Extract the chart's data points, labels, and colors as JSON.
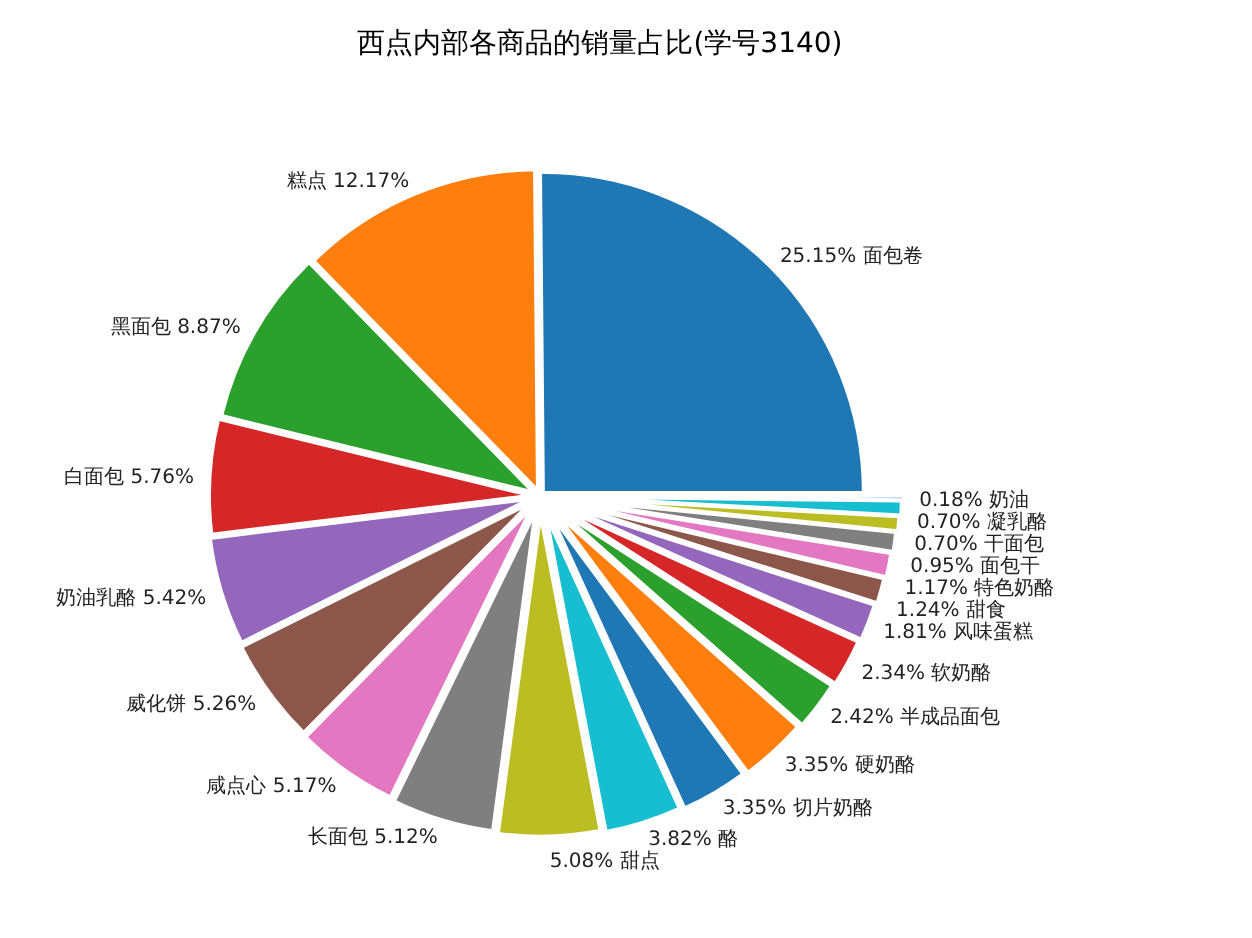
{
  "chart_data": {
    "type": "pie",
    "title": "西点内部各商品的销量占比(学号3140)",
    "categories": [
      "面包卷",
      "糕点",
      "黑面包",
      "白面包",
      "奶油乳酪",
      "威化饼",
      "咸点心",
      "长面包",
      "甜点",
      "酪",
      "切片奶酪",
      "硬奶酪",
      "半成品面包",
      "软奶酪",
      "风味蛋糕",
      "甜食",
      "特色奶酪",
      "面包干",
      "干面包",
      "凝乳酪",
      "奶油"
    ],
    "values": [
      25.15,
      12.17,
      8.87,
      5.76,
      5.42,
      5.26,
      5.17,
      5.12,
      5.08,
      3.82,
      3.35,
      3.35,
      2.42,
      2.34,
      1.81,
      1.24,
      1.17,
      0.95,
      0.7,
      0.7,
      0.18
    ],
    "value_labels": [
      "25.15%",
      "12.17%",
      "8.87%",
      "5.76%",
      "5.42%",
      "5.26%",
      "5.17%",
      "5.12%",
      "5.08%",
      "3.82%",
      "3.35%",
      "3.35%",
      "2.42%",
      "2.34%",
      "1.81%",
      "1.24%",
      "1.17%",
      "0.95%",
      "0.70%",
      "0.70%",
      "0.18%"
    ],
    "colors": [
      "#1f77b4",
      "#ff7f0e",
      "#2ca02c",
      "#d62728",
      "#9467bd",
      "#8c564b",
      "#e377c2",
      "#7f7f7f",
      "#bcbd22",
      "#17becf",
      "#1f77b4",
      "#ff7f0e",
      "#2ca02c",
      "#d62728",
      "#9467bd",
      "#8c564b",
      "#e377c2",
      "#7f7f7f",
      "#bcbd22",
      "#17becf",
      "#1f77b4"
    ]
  }
}
